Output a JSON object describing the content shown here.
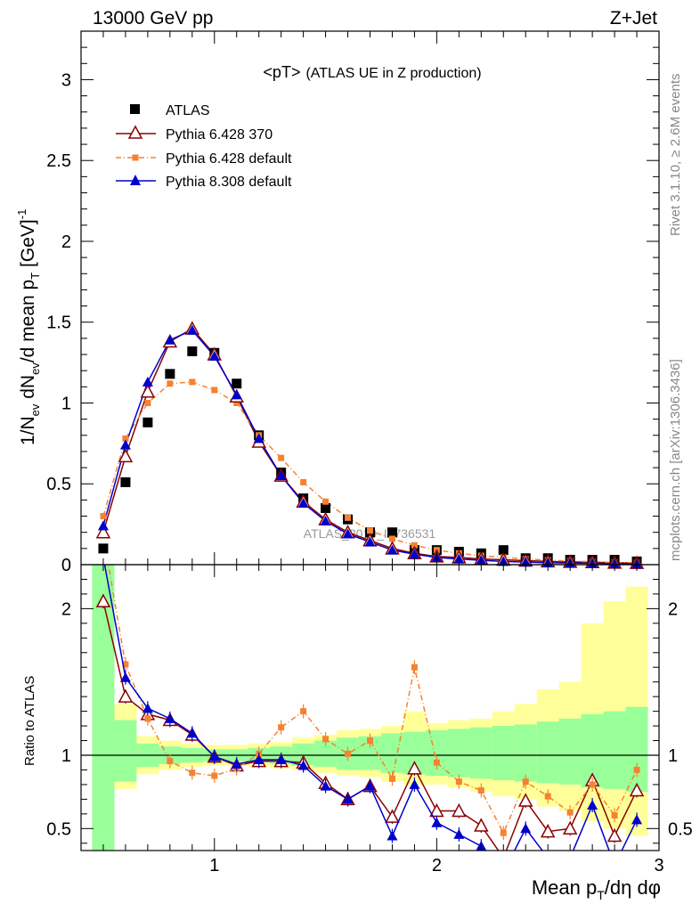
{
  "header": {
    "left": "13000 GeV pp",
    "right": "Z+Jet"
  },
  "side_labels": {
    "rivet": "Rivet 3.1.10, ≥ 2.6M events",
    "mcplots": "mcplots.cern.ch [arXiv:1306.3436]"
  },
  "watermark": "ATLAS_2019_I1736531",
  "chart_data": {
    "type": "scatter",
    "title": "<pT> (ATLAS UE in Z production)",
    "title_main": "<pT>",
    "title_sub": "(ATLAS UE in Z production)",
    "xlabel": "Mean p_T/dη dφ",
    "xlabel_parts": {
      "main": "Mean p",
      "sub": "T",
      "tail": "/dη dφ"
    },
    "ylabel": "1/N_ev dN_ev/d mean p_T [GeV]^-1",
    "ylabel_parts": [
      "1/N",
      "ev",
      " dN",
      "ev",
      "/d mean p",
      "T",
      " [GeV]",
      "-1"
    ],
    "ratio_ylabel": "Ratio to ATLAS",
    "xlim": [
      0.4,
      3.0
    ],
    "ylim": [
      0,
      3.3
    ],
    "ratio_ylim": [
      0.35,
      2.3
    ],
    "x_ticks": [
      1,
      2,
      3
    ],
    "x_tick_labels": [
      "1",
      "2",
      "3"
    ],
    "y_ticks": [
      0,
      0.5,
      1,
      1.5,
      2,
      2.5,
      3
    ],
    "y_tick_labels": [
      "0",
      "0.5",
      "1",
      "1.5",
      "2",
      "2.5",
      "3"
    ],
    "ratio_ticks": [
      0.5,
      1,
      2
    ],
    "ratio_tick_labels": [
      "0.5",
      "1",
      "2"
    ],
    "x": [
      0.5,
      0.6,
      0.7,
      0.8,
      0.9,
      1.0,
      1.1,
      1.2,
      1.3,
      1.4,
      1.5,
      1.6,
      1.7,
      1.8,
      1.9,
      2.0,
      2.1,
      2.2,
      2.3,
      2.4,
      2.5,
      2.6,
      2.7,
      2.8,
      2.9
    ],
    "legend_position": "top-left",
    "series": [
      {
        "name": "ATLAS",
        "role": "data",
        "marker": "square",
        "color": "#000000",
        "values": [
          0.1,
          0.51,
          0.88,
          1.18,
          1.32,
          1.31,
          1.12,
          0.8,
          0.57,
          0.41,
          0.35,
          0.28,
          0.2,
          0.2,
          0.09,
          0.09,
          0.08,
          0.07,
          0.09,
          0.04,
          0.04,
          0.03,
          0.03,
          0.03,
          0.02
        ]
      },
      {
        "name": "Pythia 6.428 370",
        "marker": "triangle-open",
        "color": "#8b0000",
        "dash": "",
        "values": [
          0.2,
          0.67,
          1.07,
          1.38,
          1.46,
          1.3,
          1.04,
          0.76,
          0.55,
          0.39,
          0.28,
          0.2,
          0.15,
          0.1,
          0.07,
          0.05,
          0.045,
          0.035,
          0.03,
          0.025,
          0.02,
          0.017,
          0.015,
          0.012,
          0.01
        ]
      },
      {
        "name": "Pythia 6.428 default",
        "marker": "square-small",
        "color": "#f58231",
        "dash": "6,3,1,3",
        "values": [
          0.3,
          0.78,
          1.0,
          1.12,
          1.13,
          1.08,
          1.0,
          0.8,
          0.66,
          0.51,
          0.39,
          0.29,
          0.21,
          0.16,
          0.12,
          0.09,
          0.07,
          0.055,
          0.045,
          0.035,
          0.028,
          0.022,
          0.018,
          0.014,
          0.012
        ]
      },
      {
        "name": "Pythia 8.308 default",
        "marker": "triangle-filled",
        "color": "#0000cc",
        "dash": "",
        "values": [
          0.24,
          0.74,
          1.13,
          1.39,
          1.45,
          1.29,
          1.05,
          0.78,
          0.55,
          0.38,
          0.27,
          0.19,
          0.14,
          0.09,
          0.065,
          0.045,
          0.035,
          0.027,
          0.02,
          0.016,
          0.012,
          0.01,
          0.008,
          0.006,
          0.005
        ]
      }
    ],
    "ratio_series": [
      {
        "name": "Pythia 6.428 370",
        "color": "#8b0000",
        "values": [
          2.05,
          1.4,
          1.28,
          1.24,
          1.14,
          0.99,
          0.93,
          0.96,
          0.96,
          0.95,
          0.81,
          0.7,
          0.79,
          0.58,
          0.91,
          0.62,
          0.62,
          0.52,
          0.3,
          0.69,
          0.48,
          0.5,
          0.83,
          0.45,
          0.76
        ]
      },
      {
        "name": "Pythia 6.428 default",
        "color": "#f58231",
        "values": [
          2.5,
          1.62,
          1.25,
          0.96,
          0.88,
          0.86,
          0.91,
          1.01,
          1.19,
          1.3,
          1.11,
          1.01,
          1.1,
          0.84,
          1.6,
          0.95,
          0.82,
          0.76,
          0.47,
          0.82,
          0.72,
          0.61,
          0.8,
          0.59,
          0.9
        ]
      },
      {
        "name": "Pythia 8.308 default",
        "color": "#0000cc",
        "values": [
          2.35,
          1.53,
          1.32,
          1.25,
          1.15,
          0.99,
          0.94,
          0.97,
          0.97,
          0.93,
          0.79,
          0.7,
          0.79,
          0.45,
          0.8,
          0.54,
          0.46,
          0.38,
          0.2,
          0.5,
          0.3,
          0.3,
          0.66,
          0.25,
          0.56
        ]
      }
    ],
    "ratio_bands": {
      "stat": [
        [
          0.0,
          2.4
        ],
        [
          0.82,
          1.24
        ],
        [
          0.92,
          1.08
        ],
        [
          0.94,
          1.06
        ],
        [
          0.95,
          1.05
        ],
        [
          0.96,
          1.04
        ],
        [
          0.96,
          1.04
        ],
        [
          0.95,
          1.05
        ],
        [
          0.94,
          1.06
        ],
        [
          0.93,
          1.08
        ],
        [
          0.92,
          1.1
        ],
        [
          0.9,
          1.12
        ],
        [
          0.9,
          1.13
        ],
        [
          0.88,
          1.15
        ],
        [
          0.87,
          1.16
        ],
        [
          0.86,
          1.17
        ],
        [
          0.85,
          1.18
        ],
        [
          0.84,
          1.19
        ],
        [
          0.83,
          1.2
        ],
        [
          0.82,
          1.21
        ],
        [
          0.81,
          1.23
        ],
        [
          0.8,
          1.25
        ],
        [
          0.78,
          1.28
        ],
        [
          0.77,
          1.3
        ],
        [
          0.75,
          1.33
        ]
      ],
      "total": [
        [
          0.0,
          2.4
        ],
        [
          0.77,
          1.35
        ],
        [
          0.87,
          1.13
        ],
        [
          0.9,
          1.1
        ],
        [
          0.92,
          1.08
        ],
        [
          0.93,
          1.07
        ],
        [
          0.93,
          1.07
        ],
        [
          0.92,
          1.08
        ],
        [
          0.91,
          1.09
        ],
        [
          0.9,
          1.12
        ],
        [
          0.88,
          1.14
        ],
        [
          0.86,
          1.17
        ],
        [
          0.85,
          1.18
        ],
        [
          0.82,
          1.2
        ],
        [
          0.8,
          1.3
        ],
        [
          0.8,
          1.22
        ],
        [
          0.78,
          1.24
        ],
        [
          0.75,
          1.25
        ],
        [
          0.72,
          1.3
        ],
        [
          0.7,
          1.35
        ],
        [
          0.65,
          1.45
        ],
        [
          0.62,
          1.5
        ],
        [
          0.55,
          1.9
        ],
        [
          0.5,
          2.05
        ],
        [
          0.45,
          2.15
        ]
      ]
    },
    "colors": {
      "stat_band": "#99ff99",
      "total_band": "#ffff99",
      "data": "#000000"
    },
    "grid": false
  }
}
